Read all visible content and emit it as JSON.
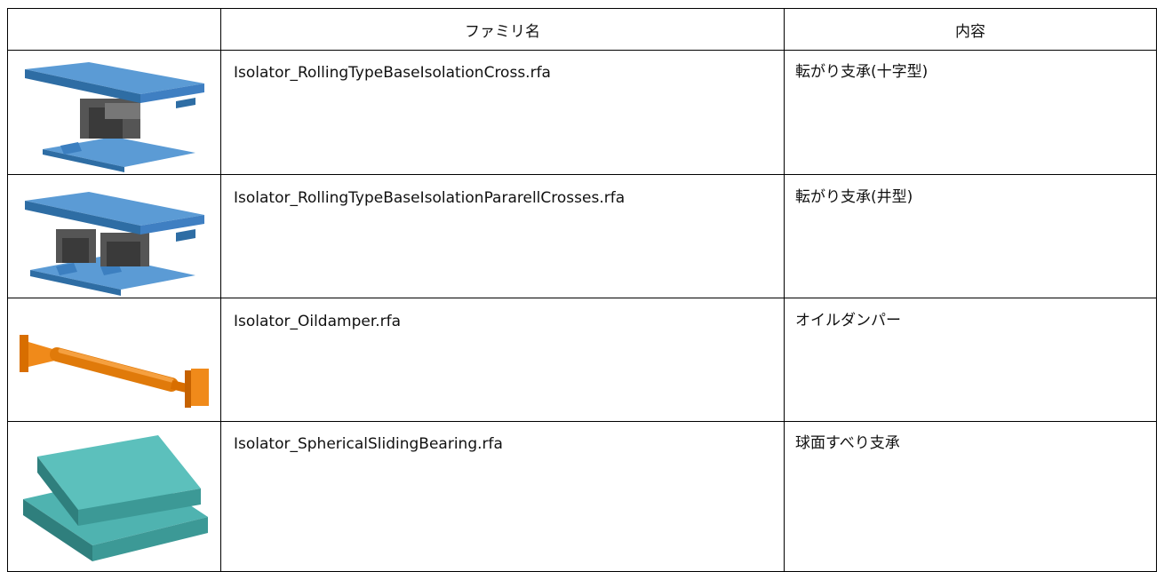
{
  "table": {
    "header": [
      "ファミリ名",
      "内容"
    ],
    "rows": [
      [
        "Isolator_RollingTypeBaseIsolationCross.rfa",
        "転がり支承(十字型)"
      ],
      [
        "Isolator_RollingTypeBaseIsolationPararellCrosses.rfa",
        "転がり支承(井型)"
      ],
      [
        "Isolator_Oildamper.rfa",
        "オイルダンパー"
      ],
      [
        "Isolator_SphericalSlidingBearing.rfa",
        "球面すべり支承"
      ]
    ]
  }
}
